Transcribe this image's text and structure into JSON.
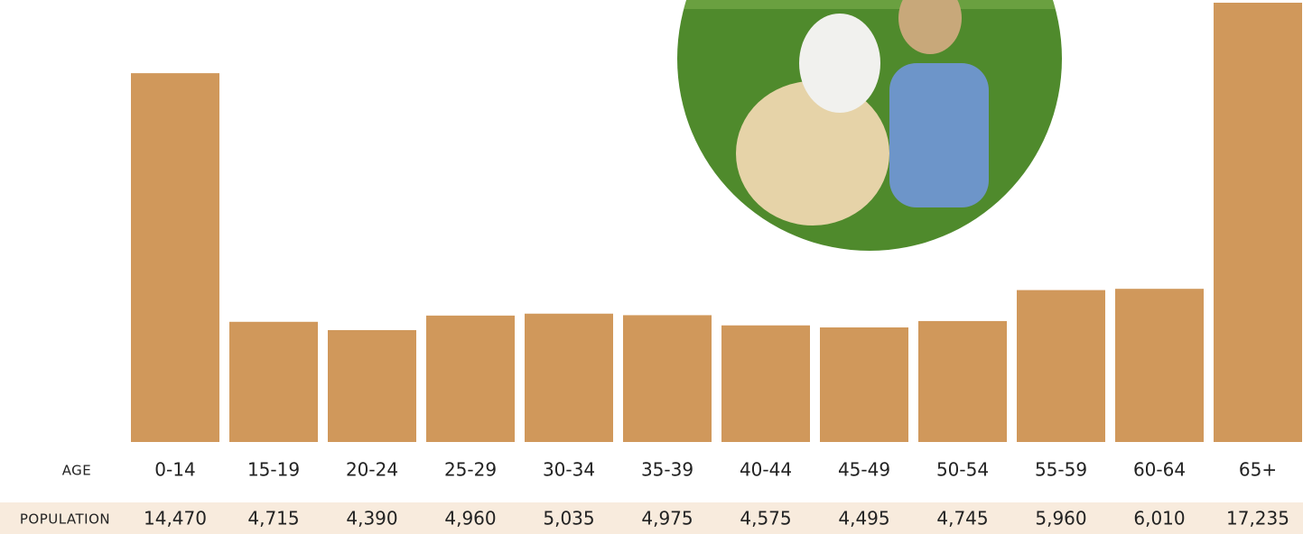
{
  "chart_data": {
    "type": "bar",
    "xlabel": "AGE",
    "ylabel": "POPULATION",
    "categories": [
      "0-14",
      "15-19",
      "20-24",
      "25-29",
      "30-34",
      "35-39",
      "40-44",
      "45-49",
      "50-54",
      "55-59",
      "60-64",
      "65+"
    ],
    "values": [
      14470,
      4715,
      4390,
      4960,
      5035,
      4975,
      4575,
      4495,
      4745,
      5960,
      6010,
      17235
    ],
    "value_labels": [
      "14,470",
      "4,715",
      "4,390",
      "4,960",
      "5,035",
      "4,975",
      "4,575",
      "4,495",
      "4,745",
      "5,960",
      "6,010",
      "17,235"
    ],
    "color": "#d0985b"
  }
}
